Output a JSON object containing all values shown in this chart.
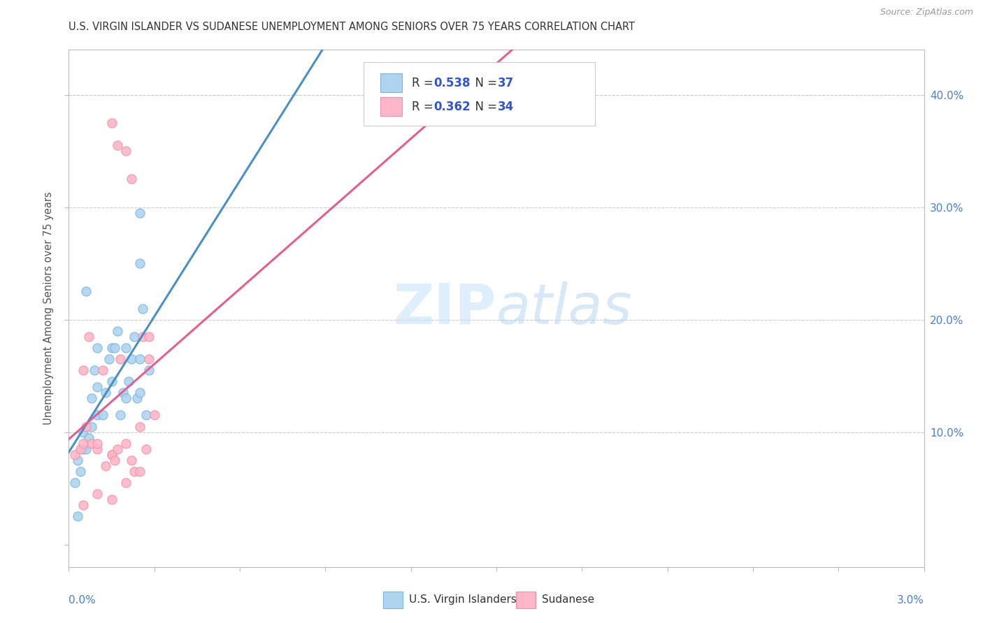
{
  "title": "U.S. VIRGIN ISLANDER VS SUDANESE UNEMPLOYMENT AMONG SENIORS OVER 75 YEARS CORRELATION CHART",
  "source": "Source: ZipAtlas.com",
  "ylabel": "Unemployment Among Seniors over 75 years",
  "watermark": "ZIPatlas",
  "x_min": 0.0,
  "x_max": 0.03,
  "y_min": -0.02,
  "y_max": 0.44,
  "y_ticks": [
    0.0,
    0.1,
    0.2,
    0.3,
    0.4
  ],
  "y_tick_labels": [
    "",
    "10.0%",
    "20.0%",
    "30.0%",
    "40.0%"
  ],
  "blue_face": "#aed4f0",
  "blue_edge": "#7ab4e0",
  "pink_face": "#ffb6c8",
  "pink_edge": "#f090a8",
  "blue_line": "#4a90c4",
  "pink_line": "#e06090",
  "dash_line": "#aaaaaa",
  "grid_color": "#cccccc",
  "title_color": "#333333",
  "source_color": "#999999",
  "label_color": "#4a7fcc",
  "legend_text_dark": "#333333",
  "legend_text_blue": "#3355cc",
  "vi_x": [
    0.0002,
    0.0003,
    0.0004,
    0.0005,
    0.0005,
    0.0006,
    0.0007,
    0.0008,
    0.0008,
    0.0009,
    0.001,
    0.001,
    0.001,
    0.0012,
    0.0013,
    0.0014,
    0.0015,
    0.0015,
    0.0016,
    0.0017,
    0.0018,
    0.0019,
    0.002,
    0.002,
    0.0021,
    0.0022,
    0.0023,
    0.0024,
    0.0025,
    0.0025,
    0.0026,
    0.0027,
    0.0028,
    0.0025,
    0.0003,
    0.0006,
    0.0025
  ],
  "vi_y": [
    0.055,
    0.075,
    0.065,
    0.085,
    0.1,
    0.085,
    0.095,
    0.13,
    0.105,
    0.155,
    0.14,
    0.175,
    0.115,
    0.115,
    0.135,
    0.165,
    0.145,
    0.175,
    0.175,
    0.19,
    0.115,
    0.135,
    0.13,
    0.175,
    0.145,
    0.165,
    0.185,
    0.13,
    0.165,
    0.135,
    0.21,
    0.115,
    0.155,
    0.295,
    0.025,
    0.225,
    0.25
  ],
  "sud_x": [
    0.0002,
    0.0004,
    0.0005,
    0.0005,
    0.0006,
    0.0007,
    0.0008,
    0.001,
    0.001,
    0.0012,
    0.0013,
    0.0015,
    0.0015,
    0.0016,
    0.0017,
    0.0018,
    0.002,
    0.0022,
    0.0023,
    0.0025,
    0.0025,
    0.0026,
    0.0027,
    0.0028,
    0.003,
    0.0015,
    0.0017,
    0.002,
    0.0022,
    0.0028,
    0.0005,
    0.001,
    0.0015,
    0.002
  ],
  "sud_y": [
    0.08,
    0.085,
    0.09,
    0.155,
    0.105,
    0.185,
    0.09,
    0.085,
    0.09,
    0.155,
    0.07,
    0.08,
    0.08,
    0.075,
    0.085,
    0.165,
    0.09,
    0.075,
    0.065,
    0.105,
    0.065,
    0.185,
    0.085,
    0.185,
    0.115,
    0.375,
    0.355,
    0.35,
    0.325,
    0.165,
    0.035,
    0.045,
    0.04,
    0.055
  ]
}
